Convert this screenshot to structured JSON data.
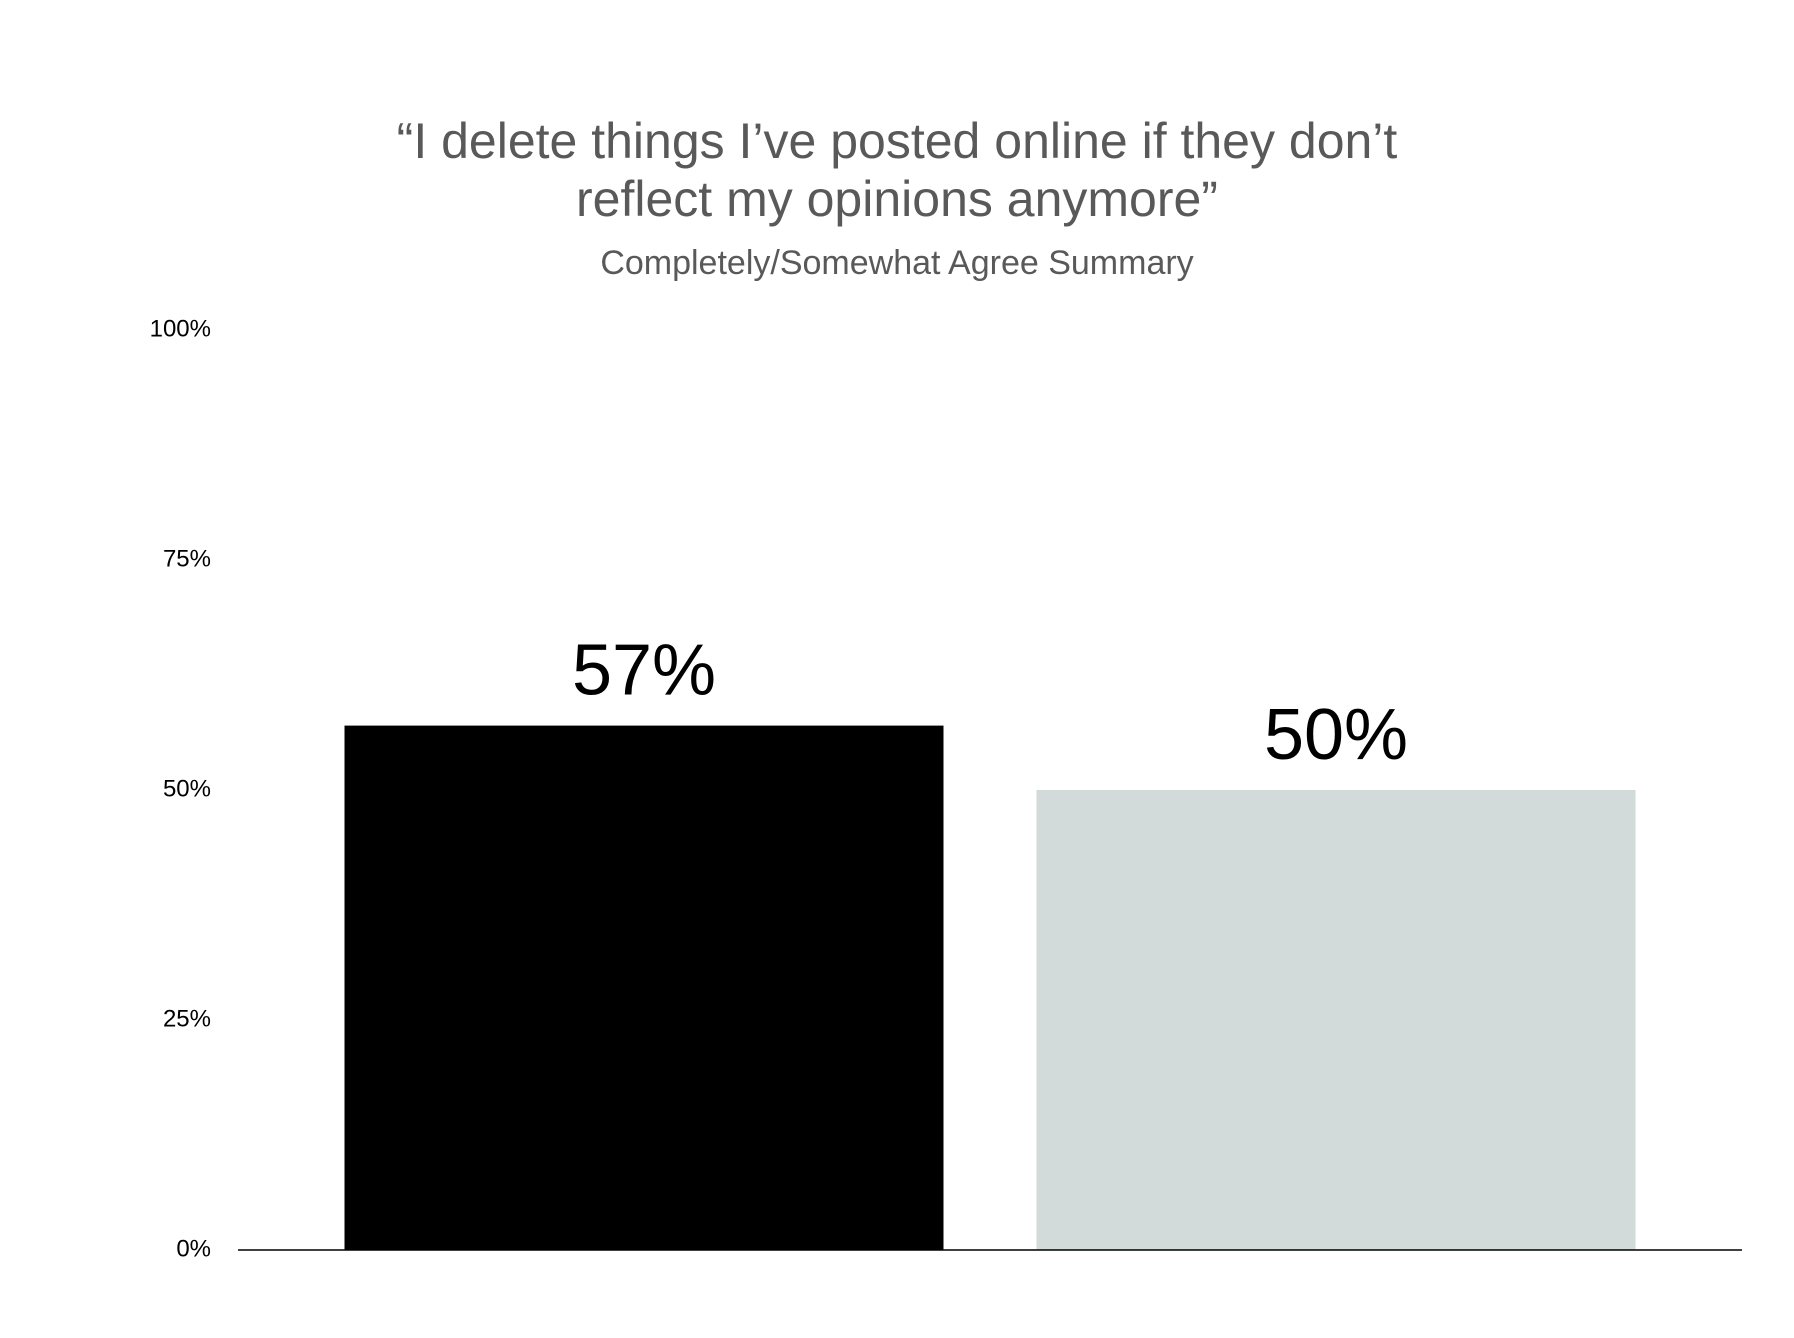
{
  "chart_data": {
    "type": "bar",
    "title": "“I delete things I’ve posted online if they don’t\nreflect my opinions anymore”",
    "subtitle": "Completely/Somewhat Agree Summary",
    "categories": [
      null,
      null
    ],
    "values": [
      57,
      50
    ],
    "value_labels": [
      "57%",
      "50%"
    ],
    "colors": [
      "#000000",
      "#d2dbda"
    ],
    "ylim": [
      0,
      100
    ],
    "yticks": [
      {
        "value": 0,
        "label": "0%"
      },
      {
        "value": 25,
        "label": "25%"
      },
      {
        "value": 50,
        "label": "50%"
      },
      {
        "value": 75,
        "label": "75%"
      },
      {
        "value": 100,
        "label": "100%"
      }
    ],
    "grid": false
  }
}
